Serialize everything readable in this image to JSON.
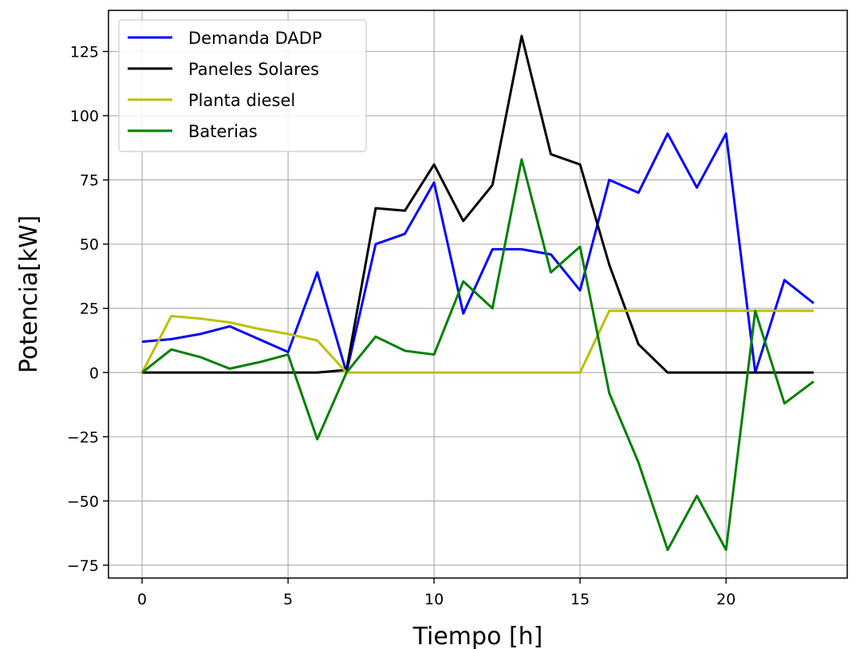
{
  "chart_data": {
    "type": "line",
    "xlabel": "Tiempo [h]",
    "ylabel": "Potencia[kW]",
    "xlim": [
      -1.15,
      24.15
    ],
    "ylim": [
      -80,
      141
    ],
    "xticks": [
      0,
      5,
      10,
      15,
      20
    ],
    "yticks": [
      -75,
      -50,
      -25,
      0,
      25,
      50,
      75,
      100,
      125
    ],
    "grid": true,
    "legend_position": "top-left",
    "x": [
      0,
      1,
      2,
      3,
      4,
      5,
      6,
      7,
      8,
      9,
      10,
      11,
      12,
      13,
      14,
      15,
      16,
      17,
      18,
      19,
      20,
      21,
      22,
      23
    ],
    "series": [
      {
        "name": "Demanda DADP",
        "color": "#0000ff",
        "values": [
          12,
          13,
          15,
          18,
          13,
          8,
          39,
          0,
          50,
          54,
          74,
          23,
          48,
          48,
          46,
          32,
          75,
          70,
          93,
          72,
          93,
          0,
          36,
          27
        ]
      },
      {
        "name": "Paneles Solares",
        "color": "#000000",
        "values": [
          0,
          0,
          0,
          0,
          0,
          0,
          0,
          1,
          64,
          63,
          81,
          59,
          73,
          131,
          85,
          81,
          42,
          11,
          0,
          0,
          0,
          0,
          0,
          0
        ]
      },
      {
        "name": "Planta diesel",
        "color": "#bfbf00",
        "values": [
          0,
          22,
          21,
          19.5,
          17,
          15,
          12.5,
          0,
          0,
          0,
          0,
          0,
          0,
          0,
          0,
          0,
          24,
          24,
          24,
          24,
          24,
          24,
          24,
          24
        ]
      },
      {
        "name": "Baterias",
        "color": "#008000",
        "values": [
          0,
          9,
          6,
          1.5,
          4,
          7,
          -26,
          0,
          14,
          8.5,
          7,
          35.5,
          25,
          83,
          39,
          49,
          -8,
          -35,
          -69,
          -48,
          -69,
          24,
          -12,
          -3.5
        ]
      }
    ]
  }
}
